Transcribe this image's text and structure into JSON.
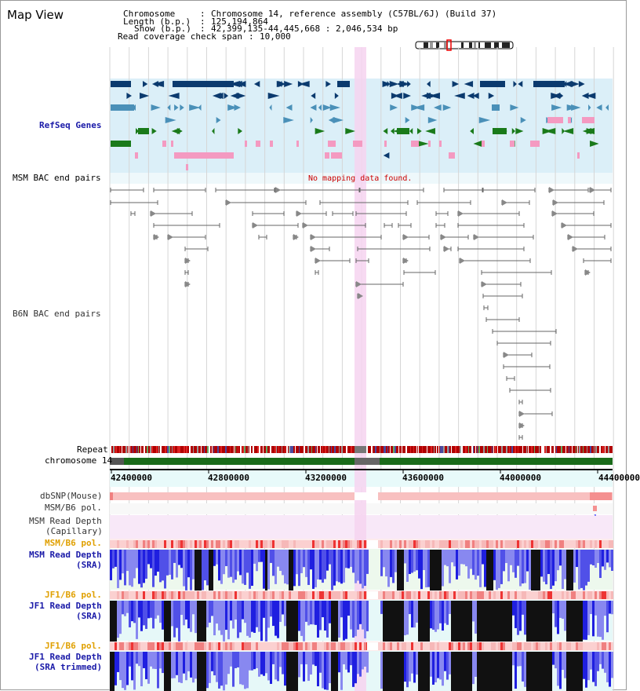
{
  "app": {
    "title": "Map View"
  },
  "info": {
    "chromosome_label": "Chromosome",
    "chromosome_value": "Chromosome 14, reference assembly (C57BL/6J) (Build 37)",
    "length_label": "Length (b.p.)",
    "length_value": "125,194,864",
    "show_label": "Show (b.p.)",
    "show_value": "42,399,135-44,445,668 : 2,046,534 bp",
    "coverage_label": "Read coverage check span",
    "coverage_value": "10,000"
  },
  "tracks": {
    "refseq": "RefSeq Genes",
    "msm_bac": "MSM BAC end pairs",
    "msm_bac_note": "No mapping data found.",
    "b6n_bac": "B6N BAC end pairs",
    "repeat": "Repeat",
    "chromosome": "chromosome 14",
    "dbsnp": "dbSNP(Mouse)",
    "msm_b6_pol_1": "MSM/B6 pol.",
    "msm_read_depth_cap_1": "MSM Read Depth",
    "msm_read_depth_cap_2": "(Capillary)",
    "msm_b6_pol_2": "MSM/B6 pol.",
    "msm_read_depth_sra_1": "MSM Read Depth",
    "msm_read_depth_sra_2": "(SRA)",
    "jf1_b6_pol_1": "JF1/B6 pol.",
    "jf1_read_depth_sra_1": "JF1 Read Depth",
    "jf1_read_depth_sra_2": "(SRA)",
    "jf1_b6_pol_2": "JF1/B6 pol.",
    "jf1_read_depth_trim_1": "JF1 Read Depth",
    "jf1_read_depth_trim_2": "(SRA trimmed)"
  },
  "axis": {
    "ticks": [
      "42400000",
      "42800000",
      "43200000",
      "43600000",
      "44000000",
      "44400000"
    ]
  },
  "colors": {
    "gene_dark": "#0b3a6e",
    "gene_mid": "#4a90b8",
    "gene_green": "#1a7a1a",
    "gene_pink": "#f49ac1",
    "highlight": "#f6d3f0",
    "track_bg_blue": "#dbeff8",
    "depth_blue": "#1f1fe0",
    "depth_light": "#8888f0",
    "depth_black": "#111111",
    "chrom_green": "#1a6b1a",
    "pol_pink": "#f6b3b3"
  }
}
